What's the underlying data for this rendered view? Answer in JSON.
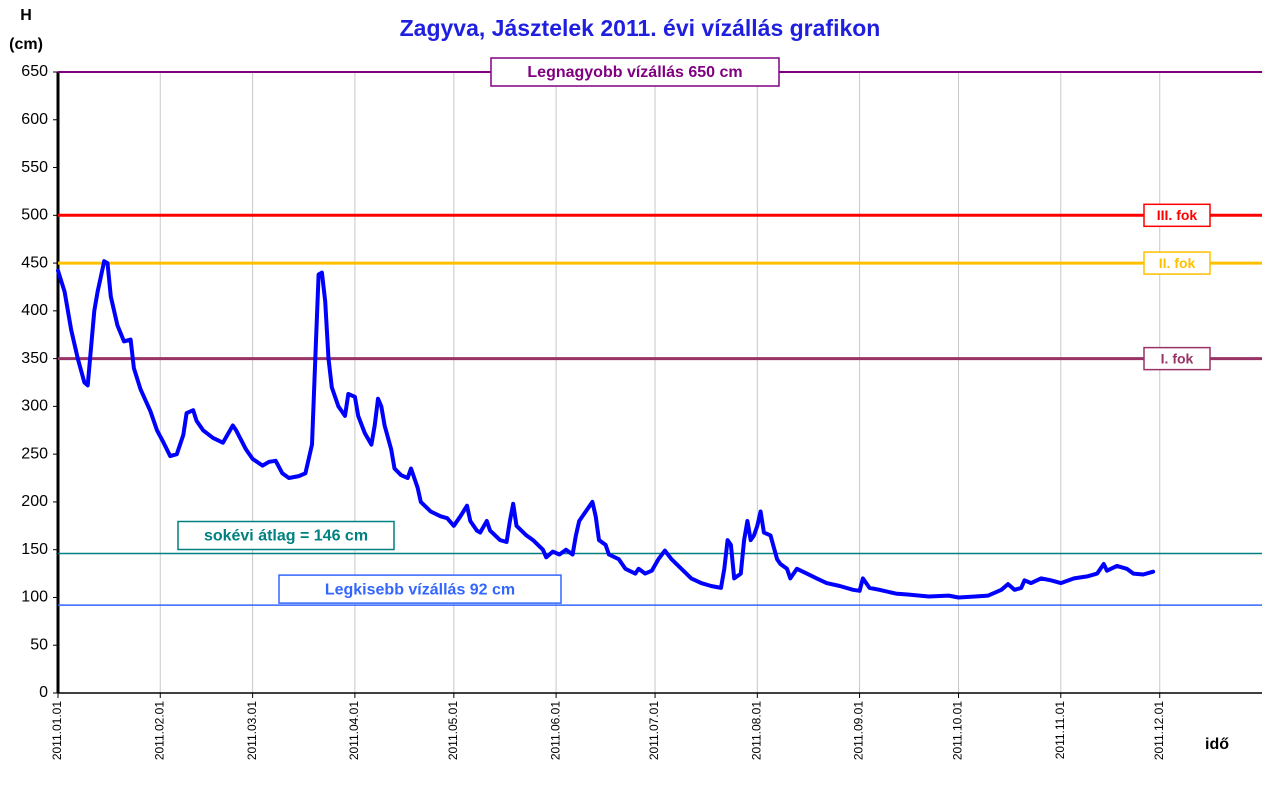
{
  "chart_data": {
    "type": "line",
    "title": "Zagyva, Jásztelek 2011. évi vízállás grafikon",
    "y_label": "H",
    "y_unit": "(cm)",
    "x_label": "idő",
    "ylim": [
      0,
      650
    ],
    "yticks": [
      0,
      50,
      100,
      150,
      200,
      250,
      300,
      350,
      400,
      450,
      500,
      550,
      600,
      650
    ],
    "xlim": [
      "2011.01.01",
      "2012.01.01"
    ],
    "xticks": [
      "2011.01.01",
      "2011.02.01",
      "2011.03.01",
      "2011.04.01",
      "2011.05.01",
      "2011.06.01",
      "2011.07.01",
      "2011.08.01",
      "2011.09.01",
      "2011.10.01",
      "2011.11.01",
      "2011.12.01"
    ],
    "grid": "x",
    "reference_lines": [
      {
        "value": 650,
        "label": "Legnagyobb vízállás 650 cm",
        "color": "#800080"
      },
      {
        "value": 500,
        "label": "III. fok",
        "color": "#ff0000"
      },
      {
        "value": 450,
        "label": "II. fok",
        "color": "#ffc000"
      },
      {
        "value": 350,
        "label": "I. fok",
        "color": "#993366"
      },
      {
        "value": 146,
        "label": "sokévi átlag = 146 cm",
        "color": "#008080"
      },
      {
        "value": 92,
        "label": "Legkisebb vízállás 92 cm",
        "color": "#3366ff"
      }
    ],
    "x": [
      "2011.01.01",
      "2011.01.03",
      "2011.01.05",
      "2011.01.07",
      "2011.01.09",
      "2011.01.10",
      "2011.01.12",
      "2011.01.13",
      "2011.01.15",
      "2011.01.16",
      "2011.01.17",
      "2011.01.19",
      "2011.01.21",
      "2011.01.23",
      "2011.01.24",
      "2011.01.26",
      "2011.01.29",
      "2011.01.31",
      "2011.02.02",
      "2011.02.04",
      "2011.02.06",
      "2011.02.08",
      "2011.02.09",
      "2011.02.11",
      "2011.02.12",
      "2011.02.14",
      "2011.02.17",
      "2011.02.20",
      "2011.02.23",
      "2011.02.24",
      "2011.02.27",
      "2011.03.01",
      "2011.03.04",
      "2011.03.06",
      "2011.03.08",
      "2011.03.10",
      "2011.03.12",
      "2011.03.15",
      "2011.03.17",
      "2011.03.19",
      "2011.03.20",
      "2011.03.21",
      "2011.03.22",
      "2011.03.23",
      "2011.03.24",
      "2011.03.25",
      "2011.03.27",
      "2011.03.29",
      "2011.03.30",
      "2011.04.01",
      "2011.04.02",
      "2011.04.04",
      "2011.04.06",
      "2011.04.07",
      "2011.04.08",
      "2011.04.09",
      "2011.04.10",
      "2011.04.12",
      "2011.04.13",
      "2011.04.15",
      "2011.04.17",
      "2011.04.18",
      "2011.04.20",
      "2011.04.21",
      "2011.04.24",
      "2011.04.27",
      "2011.04.29",
      "2011.05.01",
      "2011.05.03",
      "2011.05.05",
      "2011.05.06",
      "2011.05.08",
      "2011.05.09",
      "2011.05.11",
      "2011.05.12",
      "2011.05.15",
      "2011.05.17",
      "2011.05.18",
      "2011.05.19",
      "2011.05.20",
      "2011.05.23",
      "2011.05.25",
      "2011.05.28",
      "2011.05.29",
      "2011.05.31",
      "2011.06.02",
      "2011.06.04",
      "2011.06.06",
      "2011.06.07",
      "2011.06.08",
      "2011.06.11",
      "2011.06.12",
      "2011.06.13",
      "2011.06.14",
      "2011.06.16",
      "2011.06.17",
      "2011.06.20",
      "2011.06.22",
      "2011.06.25",
      "2011.06.26",
      "2011.06.28",
      "2011.06.30",
      "2011.07.02",
      "2011.07.04",
      "2011.07.06",
      "2011.07.09",
      "2011.07.12",
      "2011.07.15",
      "2011.07.18",
      "2011.07.21",
      "2011.07.22",
      "2011.07.23",
      "2011.07.24",
      "2011.07.25",
      "2011.07.27",
      "2011.07.28",
      "2011.07.29",
      "2011.07.30",
      "2011.07.31",
      "2011.08.01",
      "2011.08.02",
      "2011.08.03",
      "2011.08.05",
      "2011.08.07",
      "2011.08.08",
      "2011.08.10",
      "2011.08.11",
      "2011.08.13",
      "2011.08.16",
      "2011.08.19",
      "2011.08.22",
      "2011.08.26",
      "2011.08.30",
      "2011.09.01",
      "2011.09.02",
      "2011.09.04",
      "2011.09.07",
      "2011.09.12",
      "2011.09.16",
      "2011.09.22",
      "2011.09.28",
      "2011.10.01",
      "2011.10.06",
      "2011.10.10",
      "2011.10.14",
      "2011.10.16",
      "2011.10.18",
      "2011.10.20",
      "2011.10.21",
      "2011.10.23",
      "2011.10.26",
      "2011.10.29",
      "2011.11.01",
      "2011.11.05",
      "2011.11.09",
      "2011.11.12",
      "2011.11.14",
      "2011.11.15",
      "2011.11.18",
      "2011.11.21",
      "2011.11.23",
      "2011.11.26",
      "2011.11.29"
    ],
    "series": [
      {
        "color": "#0000ff",
        "values": [
          442,
          420,
          380,
          350,
          325,
          322,
          400,
          420,
          452,
          450,
          415,
          385,
          368,
          370,
          340,
          318,
          295,
          275,
          262,
          248,
          250,
          270,
          293,
          296,
          285,
          275,
          267,
          262,
          280,
          275,
          255,
          245,
          238,
          242,
          243,
          230,
          225,
          227,
          230,
          260,
          350,
          438,
          440,
          410,
          350,
          320,
          300,
          290,
          313,
          310,
          290,
          272,
          260,
          280,
          308,
          300,
          280,
          255,
          235,
          228,
          225,
          235,
          215,
          200,
          190,
          185,
          183,
          175,
          185,
          196,
          180,
          170,
          168,
          180,
          170,
          160,
          158,
          180,
          198,
          175,
          165,
          160,
          150,
          142,
          148,
          145,
          150,
          145,
          165,
          180,
          195,
          200,
          185,
          160,
          155,
          145,
          140,
          130,
          125,
          130,
          125,
          128,
          140,
          149,
          140,
          130,
          120,
          115,
          112,
          110,
          130,
          160,
          155,
          120,
          125,
          160,
          180,
          160,
          165,
          175,
          190,
          168,
          165,
          140,
          135,
          130,
          120,
          130,
          125,
          120,
          115,
          112,
          108,
          107,
          120,
          110,
          108,
          104,
          103,
          101,
          102,
          100,
          101,
          102,
          108,
          114,
          108,
          110,
          118,
          115,
          120,
          118,
          115,
          120,
          122,
          125,
          135,
          128,
          133,
          130,
          125,
          124,
          127
        ]
      }
    ]
  }
}
